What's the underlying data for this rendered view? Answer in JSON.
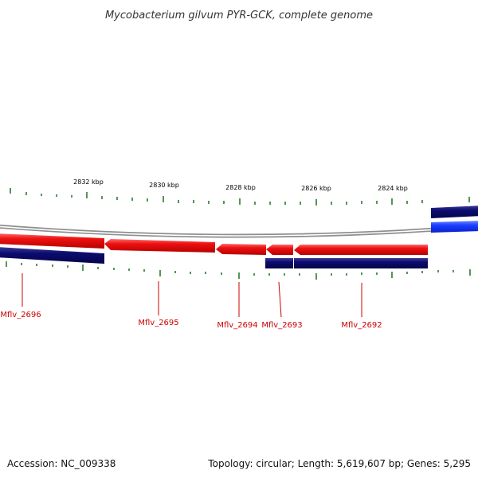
{
  "title": "Mycobacterium gilvum PYR-GCK, complete genome",
  "footer": {
    "accession": "Accession: NC_009338",
    "summary": "Topology: circular; Length: 5,619,607 bp; Genes: 5,295"
  },
  "tick_labels": [
    "2832 kbp",
    "2830 kbp",
    "2828 kbp",
    "2826 kbp",
    "2824 kbp"
  ],
  "gene_labels": [
    "Mflv_2696",
    "Mflv_2695",
    "Mflv_2694",
    "Mflv_2693",
    "Mflv_2692"
  ],
  "colors": {
    "forward_gene": "#ee1111",
    "reverse_gene": "#0b0b6e",
    "highlight_gene": "#1a3cff",
    "backbone": "#888888",
    "tick": "#2a7d2a",
    "gene_label": "#cc0000"
  }
}
